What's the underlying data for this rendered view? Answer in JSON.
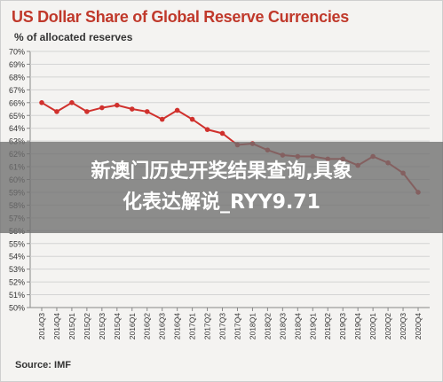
{
  "chart_data": {
    "type": "line",
    "title": "US Dollar Share of Global  Reserve Currencies",
    "ylabel": "% of allocated reserves",
    "source": "Source: IMF",
    "ylim": [
      50,
      70
    ],
    "ytick_step": 1,
    "y_tick_suffix": "%",
    "grid": "horizontal",
    "color": "#d0312d",
    "categories": [
      "2014Q3",
      "2014Q4",
      "2015Q1",
      "2015Q2",
      "2015Q3",
      "2015Q4",
      "2016Q1",
      "2016Q2",
      "2016Q3",
      "2016Q4",
      "2017Q1",
      "2017Q2",
      "2017Q3",
      "2017Q4",
      "2018Q1",
      "2018Q2",
      "2018Q3",
      "2018Q4",
      "2019Q1",
      "2019Q2",
      "2019Q3",
      "2019Q4",
      "2020Q1",
      "2020Q2",
      "2020Q3",
      "2020Q4"
    ],
    "values": [
      66.0,
      65.3,
      66.0,
      65.3,
      65.6,
      65.8,
      65.5,
      65.3,
      64.7,
      65.4,
      64.7,
      63.9,
      63.6,
      62.7,
      62.8,
      62.3,
      61.9,
      61.8,
      61.8,
      61.6,
      61.6,
      61.1,
      61.8,
      61.3,
      60.5,
      59.0
    ]
  },
  "overlay": {
    "line1": "新澳门历史开奖结果查询,具象",
    "line2": "化表达解说_RYY9.71"
  }
}
